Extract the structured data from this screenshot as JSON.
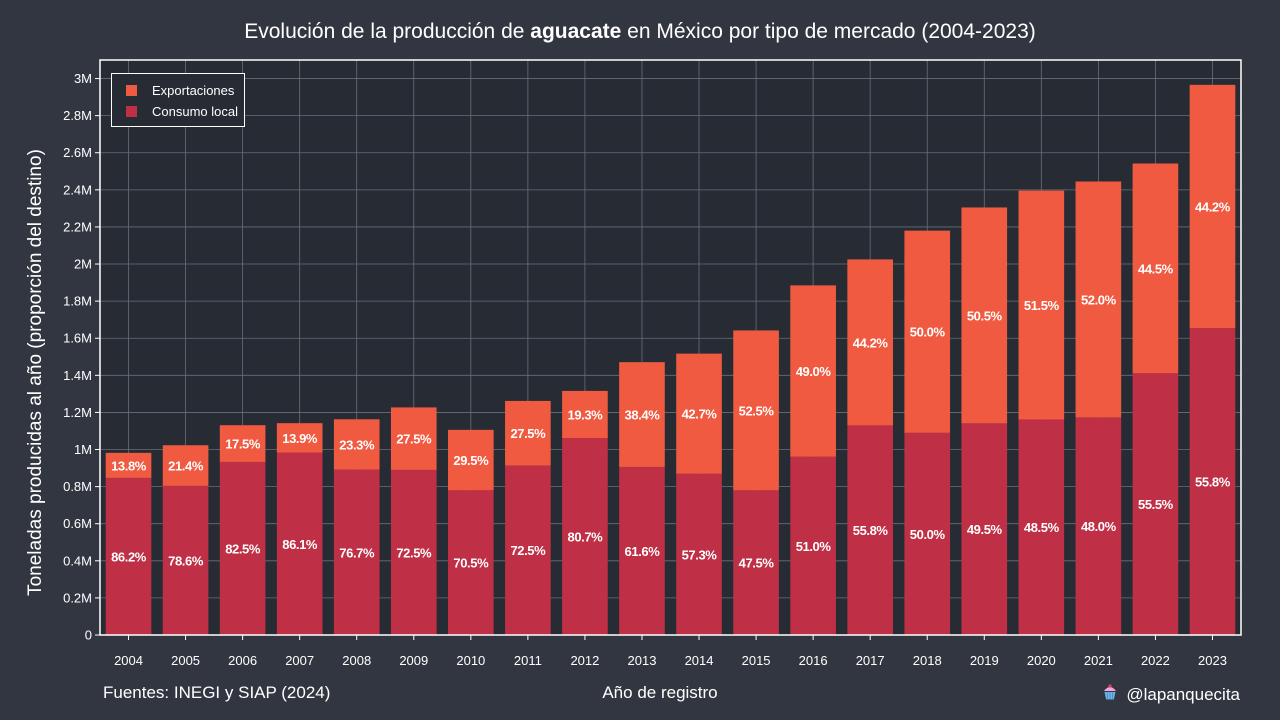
{
  "header": {
    "title_before": "Evolución de la producción de",
    "title_bold": "aguacate",
    "title_after": "en México por tipo de mercado (2004-2023)"
  },
  "footer": {
    "source": "Fuentes: INEGI y SIAP (2024)",
    "handle": "@lapanquecita",
    "handle_icon": "cupcake-icon"
  },
  "colors": {
    "background": "#323640",
    "plot_background": "#272b34",
    "exportaciones": "#f05a40",
    "consumo_local": "#bf2f45",
    "grid": "#6a6e78"
  },
  "chart_data": {
    "type": "bar",
    "stacked": true,
    "xlabel": "Año de registro",
    "ylabel": "Toneladas producidas al año (proporción del destino)",
    "ylim": [
      0,
      3100000
    ],
    "yticks": [
      0,
      200000,
      400000,
      600000,
      800000,
      1000000,
      1200000,
      1400000,
      1600000,
      1800000,
      2000000,
      2200000,
      2400000,
      2600000,
      2800000,
      3000000
    ],
    "ytick_labels": [
      "0",
      "0.2M",
      "0.4M",
      "0.6M",
      "0.8M",
      "1M",
      "1.2M",
      "1.4M",
      "1.6M",
      "1.8M",
      "2M",
      "2.2M",
      "2.4M",
      "2.6M",
      "2.8M",
      "3M"
    ],
    "grid": true,
    "legend_position": "top-left",
    "categories": [
      "2004",
      "2005",
      "2006",
      "2007",
      "2008",
      "2009",
      "2010",
      "2011",
      "2012",
      "2013",
      "2014",
      "2015",
      "2016",
      "2017",
      "2018",
      "2019",
      "2020",
      "2021",
      "2022",
      "2023"
    ],
    "series": [
      {
        "name": "Exportaciones",
        "values": [
          135000,
          219000,
          198000,
          159000,
          271000,
          337000,
          326000,
          348000,
          254000,
          565000,
          648000,
          862000,
          924000,
          895000,
          1090000,
          1164000,
          1234000,
          1272000,
          1131000,
          1311000
        ],
        "labels": [
          "13.8%",
          "21.4%",
          "17.5%",
          "13.9%",
          "23.3%",
          "27.5%",
          "29.5%",
          "27.5%",
          "19.3%",
          "38.4%",
          "42.7%",
          "52.5%",
          "49.0%",
          "44.2%",
          "50.0%",
          "50.5%",
          "51.5%",
          "52.0%",
          "44.5%",
          "44.2%"
        ]
      },
      {
        "name": "Consumo local",
        "values": [
          847000,
          804000,
          933000,
          983000,
          892000,
          890000,
          780000,
          914000,
          1062000,
          906000,
          869000,
          780000,
          961000,
          1130000,
          1090000,
          1141000,
          1162000,
          1173000,
          1411000,
          1655000
        ],
        "labels": [
          "86.2%",
          "78.6%",
          "82.5%",
          "86.1%",
          "76.7%",
          "72.5%",
          "70.5%",
          "72.5%",
          "80.7%",
          "61.6%",
          "57.3%",
          "47.5%",
          "51.0%",
          "55.8%",
          "50.0%",
          "49.5%",
          "48.5%",
          "48.0%",
          "55.5%",
          "55.8%"
        ]
      }
    ]
  }
}
